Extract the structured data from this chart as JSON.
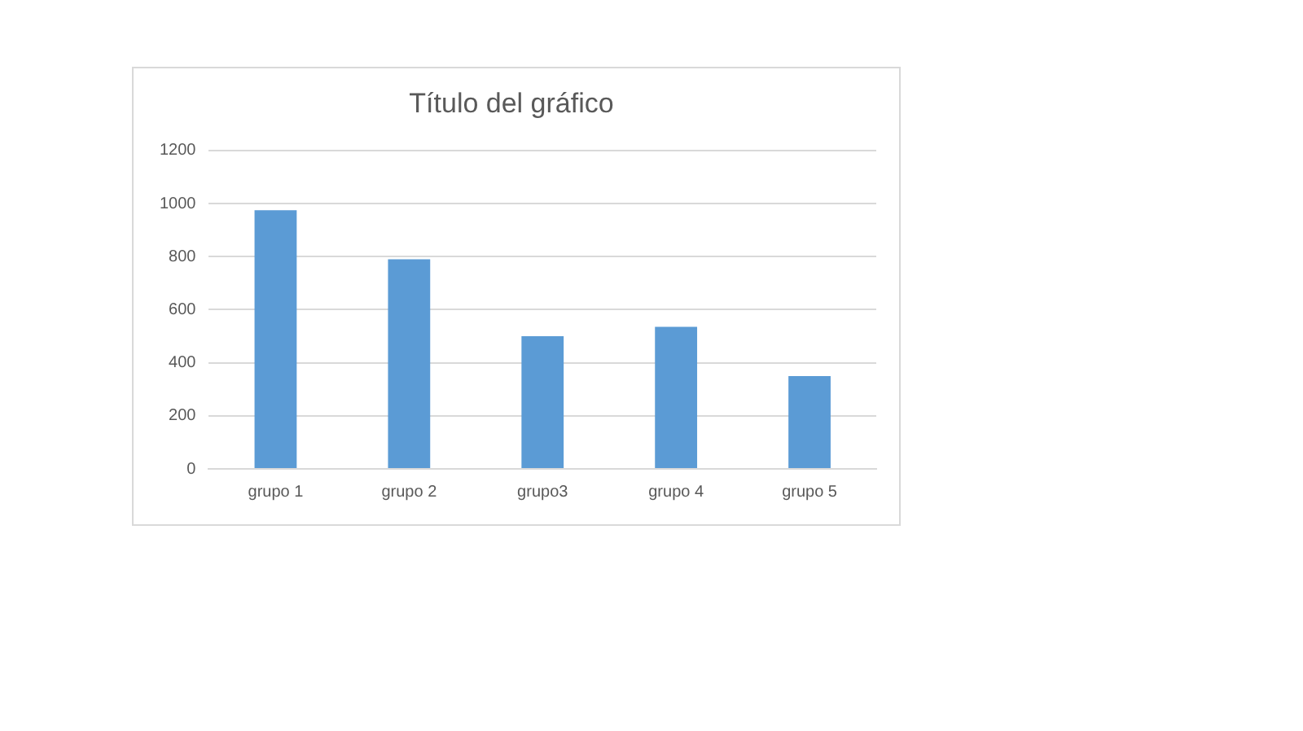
{
  "chart_data": {
    "type": "bar",
    "title": "Título del gráfico",
    "categories": [
      "grupo 1",
      "grupo 2",
      "grupo3",
      "grupo 4",
      "grupo 5"
    ],
    "values": [
      975,
      790,
      500,
      535,
      350
    ],
    "color": "#5b9bd5",
    "ylim": [
      0,
      1200
    ],
    "yticks": [
      0,
      200,
      400,
      600,
      800,
      1000,
      1200
    ],
    "grid": "y"
  }
}
